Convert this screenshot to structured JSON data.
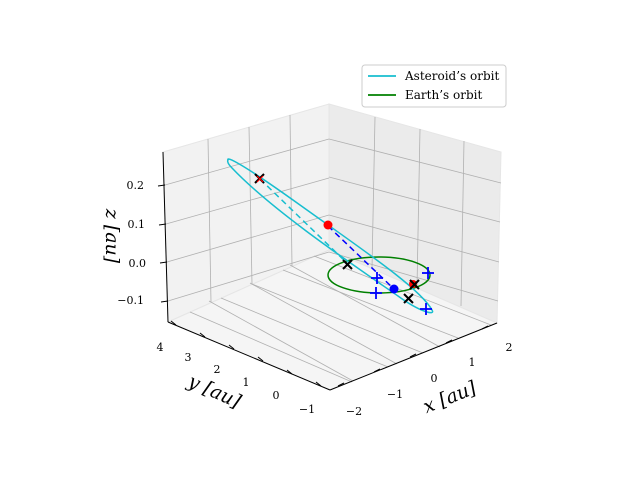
{
  "chart_data": {
    "type": "line3d",
    "title": "",
    "xlabel": "x [au]",
    "ylabel": "y [au]",
    "zlabel": "z [au]",
    "x_ticks": [
      "−2",
      "−1",
      "0",
      "1",
      "2"
    ],
    "y_ticks": [
      "−1",
      "0",
      "1",
      "2",
      "3",
      "4"
    ],
    "z_ticks": [
      "−0.1",
      "0.0",
      "0.1",
      "0.2"
    ],
    "xlim": [
      -2.3,
      2.4
    ],
    "ylim": [
      -1.3,
      4.3
    ],
    "zlim": [
      -0.14,
      0.27
    ],
    "grid": true,
    "legend_position": "top-right",
    "series": [
      {
        "name": "Asteroid’s orbit",
        "color": "#17becf"
      },
      {
        "name": "Earth’s orbit",
        "color": "#008000"
      }
    ],
    "markers": {
      "red_dots": 2,
      "blue_dots": 1,
      "black_x": 4,
      "blue_plus": 4
    }
  }
}
